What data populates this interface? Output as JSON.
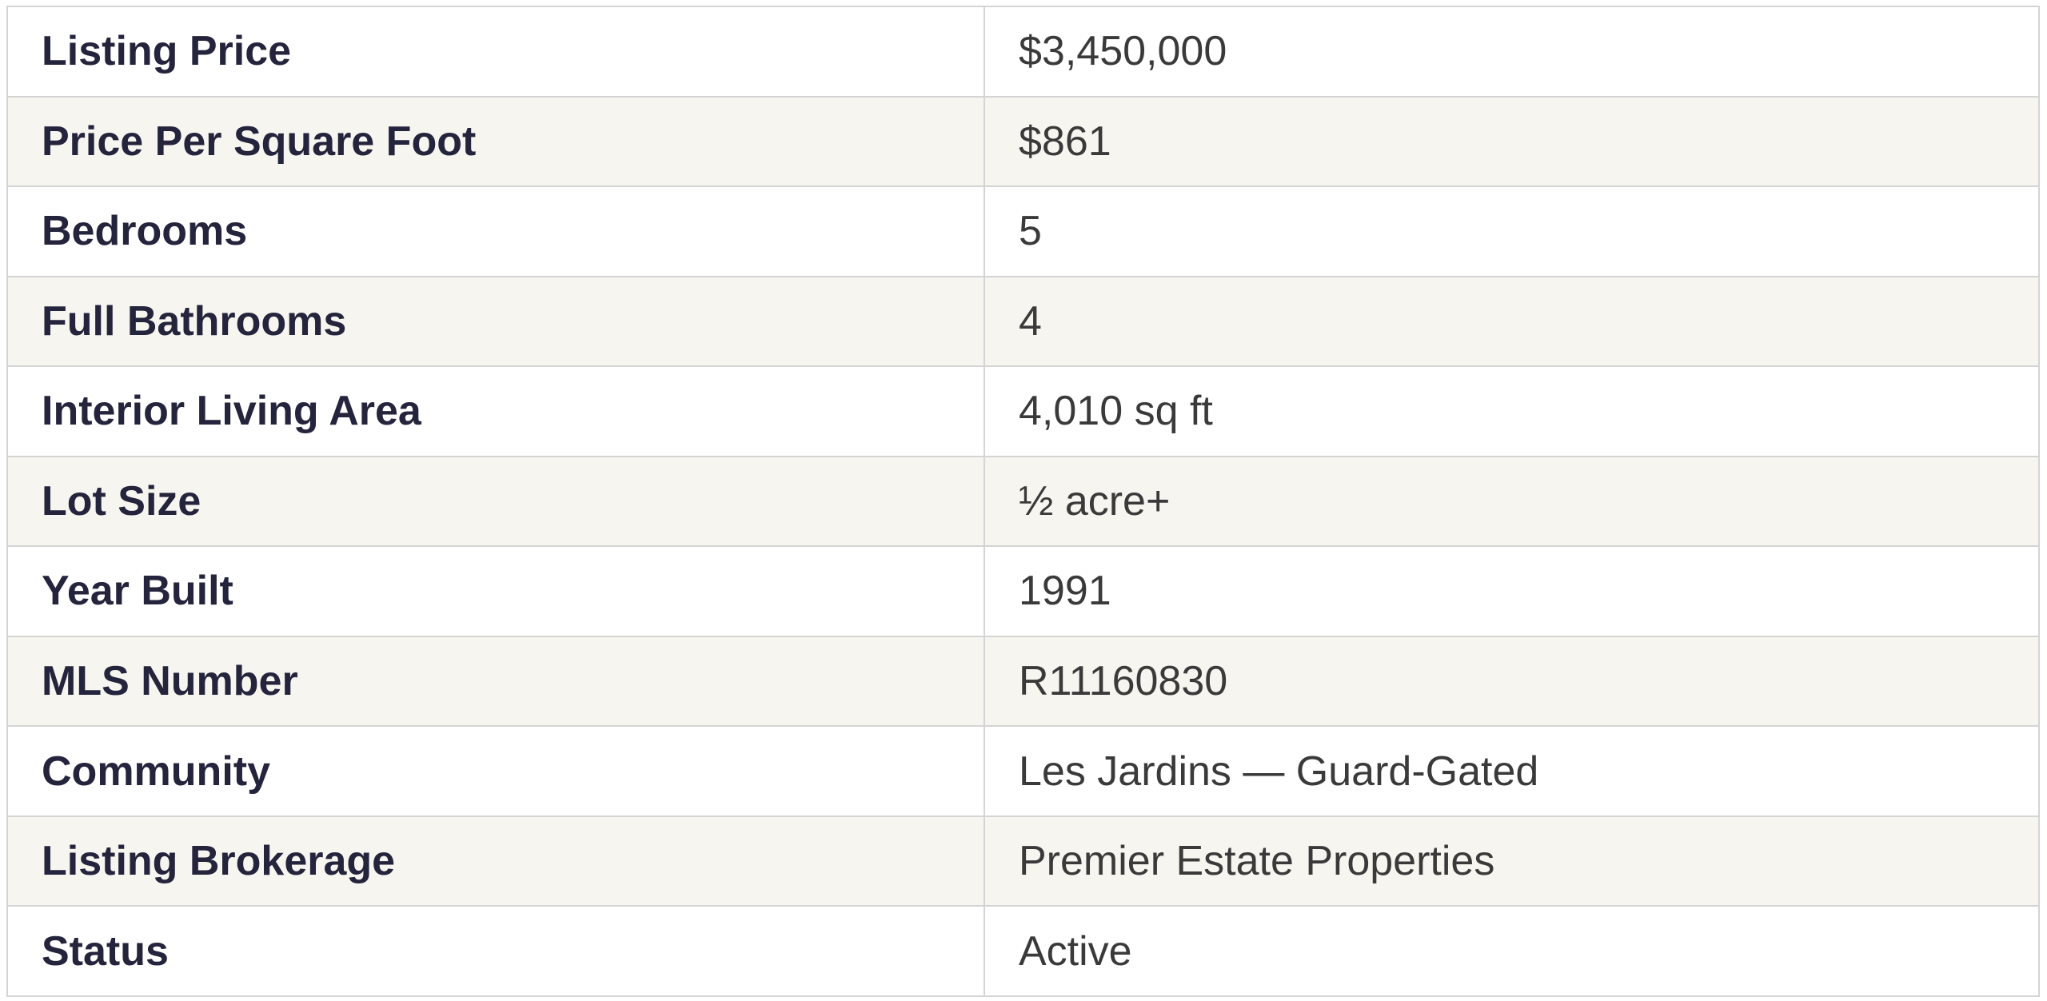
{
  "table": {
    "rows": [
      [
        "Listing Price",
        "$3,450,000"
      ],
      [
        "Price Per Square Foot",
        "$861"
      ],
      [
        "Bedrooms",
        "5"
      ],
      [
        "Full Bathrooms",
        "4"
      ],
      [
        "Interior Living Area",
        "4,010 sq ft"
      ],
      [
        "Lot Size",
        "½ acre+"
      ],
      [
        "Year Built",
        "1991"
      ],
      [
        "MLS Number",
        "R11160830"
      ],
      [
        "Community",
        "Les Jardins — Guard-Gated"
      ],
      [
        "Listing Brokerage",
        "Premier Estate Properties"
      ],
      [
        "Status",
        "Active"
      ]
    ]
  }
}
